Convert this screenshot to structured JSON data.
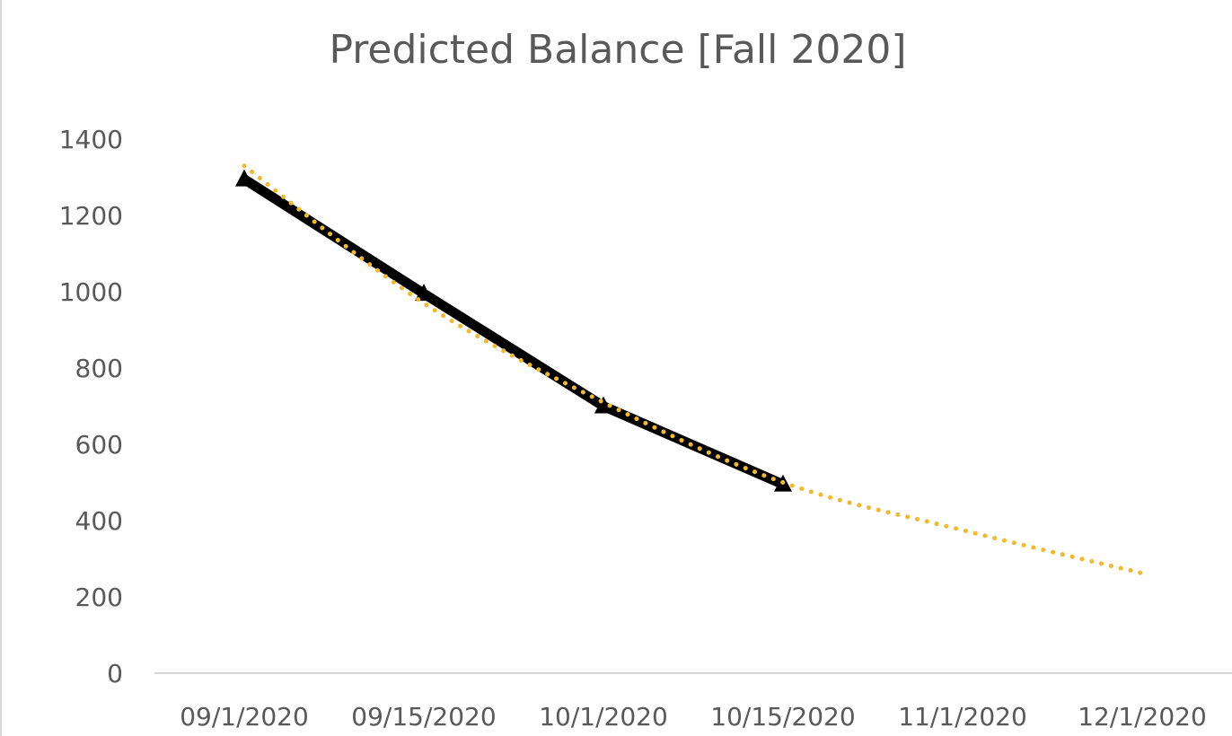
{
  "chart_data": {
    "type": "line",
    "title": "Predicted Balance [Fall 2020]",
    "xlabel": "",
    "ylabel": "",
    "categories": [
      "09/1/2020",
      "09/15/2020",
      "10/1/2020",
      "10/15/2020",
      "11/1/2020",
      "12/1/2020"
    ],
    "ylim": [
      0,
      1400
    ],
    "yticks": [
      0,
      200,
      400,
      600,
      800,
      1000,
      1200,
      1400
    ],
    "grid": false,
    "legend": "none",
    "series": [
      {
        "values": [
          1295,
          995,
          700,
          495,
          null,
          null
        ],
        "color": "#000000",
        "marker": "triangle",
        "style": "solid"
      },
      {
        "values": [
          1330,
          970,
          710,
          500,
          375,
          262
        ],
        "color": "#f2b92a",
        "marker": "none",
        "style": "dotted",
        "trend": "exponential"
      }
    ]
  }
}
